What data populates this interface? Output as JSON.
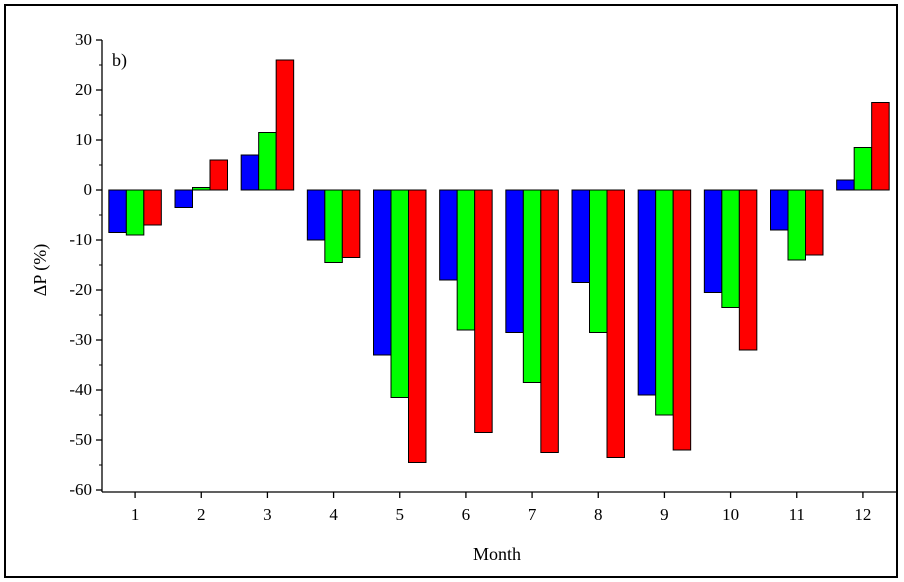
{
  "chart_data": {
    "type": "bar",
    "panel_label": "b)",
    "title": "",
    "xlabel": "Month",
    "ylabel": "ΔP (%)",
    "ylim": [
      -60,
      30
    ],
    "yticks": [
      30,
      20,
      10,
      0,
      -10,
      -20,
      -30,
      -40,
      -50,
      -60
    ],
    "categories": [
      "1",
      "2",
      "3",
      "4",
      "5",
      "6",
      "7",
      "8",
      "9",
      "10",
      "11",
      "12"
    ],
    "grid": false,
    "legend": "none",
    "series": [
      {
        "color": "#0000ff",
        "values": [
          -8.5,
          -3.5,
          7,
          -10,
          -33,
          -18,
          -28.5,
          -18.5,
          -41,
          -20.5,
          -8,
          2
        ]
      },
      {
        "color": "#00ff00",
        "values": [
          -9,
          0.5,
          11.5,
          -14.5,
          -41.5,
          -28,
          -38.5,
          -28.5,
          -45,
          -23.5,
          -14,
          8.5
        ]
      },
      {
        "color": "#ff0000",
        "values": [
          -7,
          6,
          26,
          -13.5,
          -54.5,
          -48.5,
          -52.5,
          -53.5,
          -52,
          -32,
          -13,
          17.5
        ]
      }
    ]
  }
}
